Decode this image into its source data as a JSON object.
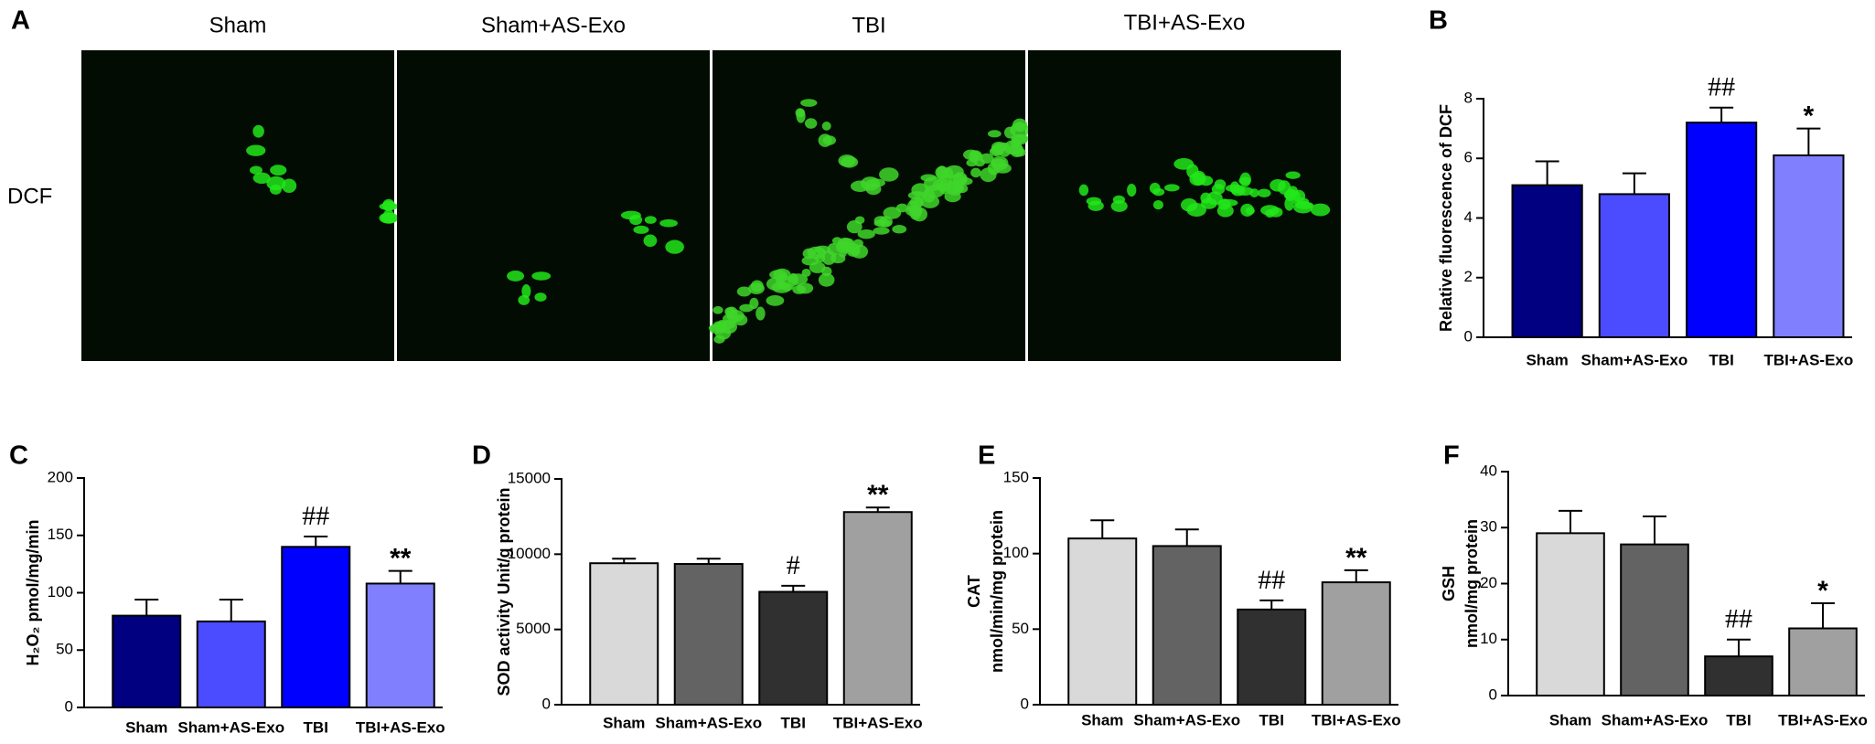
{
  "panel_labels": [
    "A",
    "B",
    "C",
    "D",
    "E",
    "F"
  ],
  "image_panel": {
    "titles": [
      "Sham",
      "Sham+AS-Exo",
      "TBI",
      "TBI+AS-Exo"
    ],
    "row_label": "DCF"
  },
  "chart_data": [
    {
      "type": "bar",
      "ylabel": "Relative fluorescence of DCF",
      "categories": [
        "Sham",
        "Sham+AS-Exo",
        "TBI",
        "TBI+AS-Exo"
      ],
      "values": [
        5.1,
        4.8,
        7.2,
        6.1
      ],
      "errors": [
        0.8,
        0.7,
        0.5,
        0.9
      ],
      "colors": [
        "#000080",
        "#4b4bff",
        "#0000ff",
        "#8080ff"
      ],
      "annotations": [
        null,
        null,
        "##",
        "*"
      ],
      "ylim": [
        0,
        8
      ],
      "yticks": [
        0,
        2,
        4,
        6,
        8
      ]
    },
    {
      "type": "bar",
      "ylabel": "H₂O₂ pmol/mg/min",
      "categories": [
        "Sham",
        "Sham+AS-Exo",
        "TBI",
        "TBI+AS-Exo"
      ],
      "values": [
        80,
        75,
        140,
        108
      ],
      "errors": [
        14,
        19,
        9,
        11
      ],
      "colors": [
        "#000080",
        "#4b4bff",
        "#0000ff",
        "#8080ff"
      ],
      "annotations": [
        null,
        null,
        "##",
        "**"
      ],
      "ylim": [
        0,
        200
      ],
      "yticks": [
        0,
        50,
        100,
        150,
        200
      ]
    },
    {
      "type": "bar",
      "ylabel": "SOD activity Unit/g protein",
      "categories": [
        "Sham",
        "Sham+AS-Exo",
        "TBI",
        "TBI+AS-Exo"
      ],
      "values": [
        9400,
        9350,
        7500,
        12800
      ],
      "errors": [
        300,
        350,
        400,
        300
      ],
      "colors": [
        "#d9d9d9",
        "#636363",
        "#303030",
        "#a0a0a0"
      ],
      "annotations": [
        null,
        null,
        "#",
        "**"
      ],
      "ylim": [
        0,
        15000
      ],
      "yticks": [
        0,
        5000,
        10000,
        15000
      ]
    },
    {
      "type": "bar",
      "ylabel": [
        "CAT",
        "nmol/min/mg protein"
      ],
      "categories": [
        "Sham",
        "Sham+AS-Exo",
        "TBI",
        "TBI+AS-Exo"
      ],
      "values": [
        110,
        105,
        63,
        81
      ],
      "errors": [
        12,
        11,
        6,
        8
      ],
      "colors": [
        "#d9d9d9",
        "#636363",
        "#303030",
        "#a0a0a0"
      ],
      "annotations": [
        null,
        null,
        "##",
        "**"
      ],
      "ylim": [
        0,
        150
      ],
      "yticks": [
        0,
        50,
        100,
        150
      ]
    },
    {
      "type": "bar",
      "ylabel": [
        "GSH",
        "nmol/mg protein"
      ],
      "categories": [
        "Sham",
        "Sham+AS-Exo",
        "TBI",
        "TBI+AS-Exo"
      ],
      "values": [
        29,
        27,
        7,
        12
      ],
      "errors": [
        4,
        5,
        3,
        4.5
      ],
      "colors": [
        "#d9d9d9",
        "#636363",
        "#303030",
        "#a0a0a0"
      ],
      "annotations": [
        null,
        null,
        "##",
        "*"
      ],
      "ylim": [
        0,
        40
      ],
      "yticks": [
        0,
        10,
        20,
        30,
        40
      ]
    }
  ]
}
